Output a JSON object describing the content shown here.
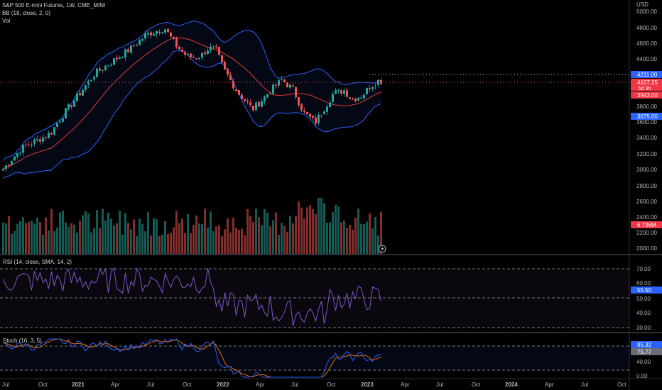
{
  "header": {
    "symbol_line": "S&P 500 E-mini Futures, 1W, CME_MINI",
    "bb_line": "BB (18, close, 2, 0)",
    "vol_line": "Vol"
  },
  "currency": "USD",
  "price_axis": {
    "ticks": [
      "5000.00",
      "4800.00",
      "4600.00",
      "4400.00",
      "3800.00",
      "3600.00",
      "3400.00",
      "3200.00",
      "3000.00",
      "2800.00",
      "2600.00",
      "2400.00",
      "2200.00",
      "2000.00"
    ],
    "labels": {
      "bb_upper": "4211.00",
      "last_price": "4107.25",
      "countdown": "5d 3h",
      "bb_middle": "3943.00",
      "bb_lower": "3675.00",
      "volume": "6.736M"
    }
  },
  "rsi": {
    "title": "RSI (14, close, SMA, 14, 2)",
    "ticks": [
      "70.00",
      "60.00",
      "50.00",
      "40.00",
      "30.00"
    ],
    "value": "55.50"
  },
  "stoch": {
    "title": "Stoch (16, 3, 5)",
    "ticks": [
      "40.00",
      "0.00"
    ],
    "k_value": "85.32",
    "d_value": "75.77"
  },
  "time_axis": [
    "Jul",
    "Oct",
    "2021",
    "Apr",
    "Jul",
    "Oct",
    "2022",
    "Apr",
    "Jul",
    "Oct",
    "2023",
    "Apr",
    "Jul",
    "Oct",
    "2024",
    "Apr",
    "Jul",
    "Oct"
  ],
  "colors": {
    "up": "#26a69a",
    "down": "#ef5350",
    "bb_band": "#2962ff",
    "bb_basis": "#e53935",
    "rsi_line": "#7e57c2",
    "stoch_k": "#2962ff",
    "stoch_d": "#ef6c00",
    "tag_blue": "#2962ff",
    "tag_red": "#f23645"
  }
}
